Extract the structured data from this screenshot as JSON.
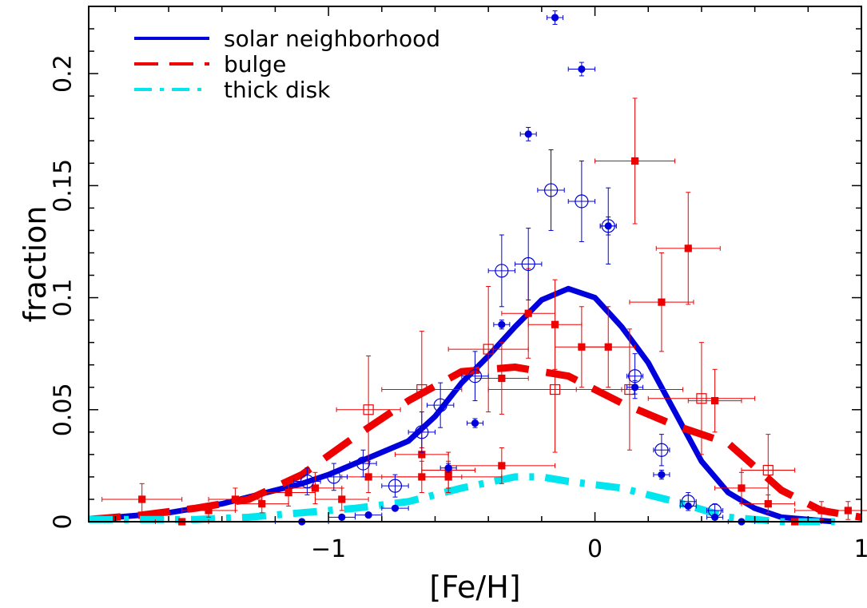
{
  "chart_data": {
    "type": "line",
    "xlabel": "[Fe/H]",
    "ylabel": "fraction",
    "xlim": [
      -1.9,
      1.0
    ],
    "ylim": [
      0,
      0.23
    ],
    "x_ticks": [
      -1,
      0,
      1
    ],
    "x_tick_labels": [
      "−1",
      "0",
      "1"
    ],
    "y_ticks": [
      0,
      0.05,
      0.1,
      0.15,
      0.2
    ],
    "y_tick_labels": [
      "0",
      "0.05",
      "0.1",
      "0.15",
      "0.2"
    ],
    "legend_position": "top-left",
    "colors": {
      "solar": "#0000dd",
      "bulge": "#ee0000",
      "thick": "#00e5ee"
    },
    "series": [
      {
        "name": "solar neighborhood",
        "key": "solar",
        "style": "solid",
        "points": [
          [
            -1.9,
            0.001
          ],
          [
            -1.8,
            0.002
          ],
          [
            -1.7,
            0.003
          ],
          [
            -1.6,
            0.004
          ],
          [
            -1.5,
            0.006
          ],
          [
            -1.4,
            0.008
          ],
          [
            -1.3,
            0.011
          ],
          [
            -1.2,
            0.014
          ],
          [
            -1.1,
            0.017
          ],
          [
            -1.0,
            0.021
          ],
          [
            -0.9,
            0.026
          ],
          [
            -0.8,
            0.031
          ],
          [
            -0.7,
            0.036
          ],
          [
            -0.6,
            0.047
          ],
          [
            -0.5,
            0.062
          ],
          [
            -0.4,
            0.074
          ],
          [
            -0.3,
            0.087
          ],
          [
            -0.2,
            0.099
          ],
          [
            -0.1,
            0.104
          ],
          [
            0.0,
            0.1
          ],
          [
            0.1,
            0.087
          ],
          [
            0.2,
            0.071
          ],
          [
            0.3,
            0.049
          ],
          [
            0.4,
            0.027
          ],
          [
            0.5,
            0.013
          ],
          [
            0.6,
            0.006
          ],
          [
            0.7,
            0.002
          ],
          [
            0.8,
            0.001
          ],
          [
            0.9,
            0.0
          ]
        ]
      },
      {
        "name": "bulge",
        "key": "bulge",
        "style": "dashed",
        "points": [
          [
            -1.9,
            0.001
          ],
          [
            -1.7,
            0.003
          ],
          [
            -1.5,
            0.006
          ],
          [
            -1.3,
            0.01
          ],
          [
            -1.1,
            0.021
          ],
          [
            -0.9,
            0.038
          ],
          [
            -0.7,
            0.054
          ],
          [
            -0.5,
            0.067
          ],
          [
            -0.3,
            0.069
          ],
          [
            -0.1,
            0.065
          ],
          [
            0.1,
            0.053
          ],
          [
            0.3,
            0.043
          ],
          [
            0.5,
            0.035
          ],
          [
            0.7,
            0.014
          ],
          [
            0.85,
            0.005
          ],
          [
            1.0,
            0.002
          ]
        ]
      },
      {
        "name": "thick disk",
        "key": "thick",
        "style": "dashdot",
        "points": [
          [
            -1.9,
            0.001
          ],
          [
            -1.7,
            0.001
          ],
          [
            -1.5,
            0.001
          ],
          [
            -1.3,
            0.002
          ],
          [
            -1.1,
            0.004
          ],
          [
            -0.9,
            0.006
          ],
          [
            -0.7,
            0.009
          ],
          [
            -0.5,
            0.015
          ],
          [
            -0.3,
            0.02
          ],
          [
            -0.2,
            0.02
          ],
          [
            -0.1,
            0.018
          ],
          [
            0.1,
            0.015
          ],
          [
            0.3,
            0.009
          ],
          [
            0.5,
            0.002
          ],
          [
            0.7,
            0.0
          ],
          [
            0.9,
            0.0
          ]
        ]
      }
    ],
    "points_blue_filled": [
      {
        "x": -0.15,
        "y": 0.225,
        "xerr": 0.03,
        "yerr": 0.003
      },
      {
        "x": -0.05,
        "y": 0.202,
        "xerr": 0.05,
        "yerr": 0.003
      },
      {
        "x": -0.25,
        "y": 0.173,
        "xerr": 0.03,
        "yerr": 0.003
      },
      {
        "x": 0.05,
        "y": 0.132,
        "xerr": 0.03,
        "yerr": 0.004
      },
      {
        "x": -0.35,
        "y": 0.088,
        "xerr": 0.03,
        "yerr": 0.002
      },
      {
        "x": 0.15,
        "y": 0.06,
        "xerr": 0.03,
        "yerr": 0.003
      },
      {
        "x": -0.45,
        "y": 0.044,
        "xerr": 0.03,
        "yerr": 0.002
      },
      {
        "x": -0.55,
        "y": 0.024,
        "xerr": 0.03,
        "yerr": 0.002
      },
      {
        "x": 0.25,
        "y": 0.021,
        "xerr": 0.03,
        "yerr": 0.002
      },
      {
        "x": -0.75,
        "y": 0.006,
        "xerr": 0.05,
        "yerr": 0.001
      },
      {
        "x": 0.35,
        "y": 0.007,
        "xerr": 0.03,
        "yerr": 0.001
      },
      {
        "x": -0.85,
        "y": 0.003,
        "xerr": 0.05,
        "yerr": 0.001
      },
      {
        "x": -0.95,
        "y": 0.002,
        "xerr": 0.05,
        "yerr": 0.001
      },
      {
        "x": 0.45,
        "y": 0.002,
        "xerr": 0.03,
        "yerr": 0.001
      },
      {
        "x": -1.1,
        "y": 0.0,
        "xerr": 0.1,
        "yerr": 0.0
      },
      {
        "x": 0.55,
        "y": 0.0,
        "xerr": 0.05,
        "yerr": 0.0
      }
    ],
    "points_blue_open": [
      {
        "x": -0.165,
        "y": 0.148,
        "xerr": 0.05,
        "yerr": 0.018
      },
      {
        "x": -0.05,
        "y": 0.143,
        "xerr": 0.05,
        "yerr": 0.018
      },
      {
        "x": 0.05,
        "y": 0.132,
        "xerr": 0.03,
        "yerr": 0.017
      },
      {
        "x": -0.25,
        "y": 0.115,
        "xerr": 0.05,
        "yerr": 0.016
      },
      {
        "x": -0.35,
        "y": 0.112,
        "xerr": 0.05,
        "yerr": 0.016
      },
      {
        "x": 0.15,
        "y": 0.065,
        "xerr": 0.03,
        "yerr": 0.01
      },
      {
        "x": -0.45,
        "y": 0.065,
        "xerr": 0.05,
        "yerr": 0.011
      },
      {
        "x": -0.58,
        "y": 0.052,
        "xerr": 0.05,
        "yerr": 0.01
      },
      {
        "x": -0.65,
        "y": 0.04,
        "xerr": 0.05,
        "yerr": 0.009
      },
      {
        "x": 0.25,
        "y": 0.032,
        "xerr": 0.03,
        "yerr": 0.007
      },
      {
        "x": -0.87,
        "y": 0.026,
        "xerr": 0.05,
        "yerr": 0.006
      },
      {
        "x": -0.98,
        "y": 0.02,
        "xerr": 0.05,
        "yerr": 0.006
      },
      {
        "x": -1.08,
        "y": 0.018,
        "xerr": 0.05,
        "yerr": 0.006
      },
      {
        "x": -0.75,
        "y": 0.016,
        "xerr": 0.05,
        "yerr": 0.005
      },
      {
        "x": 0.35,
        "y": 0.009,
        "xerr": 0.03,
        "yerr": 0.004
      },
      {
        "x": 0.45,
        "y": 0.005,
        "xerr": 0.03,
        "yerr": 0.003
      }
    ],
    "points_red_filled": [
      {
        "x": 0.15,
        "y": 0.161,
        "xerr": 0.15,
        "yerr": 0.028
      },
      {
        "x": 0.35,
        "y": 0.122,
        "xerr": 0.12,
        "yerr": 0.025
      },
      {
        "x": 0.25,
        "y": 0.098,
        "xerr": 0.12,
        "yerr": 0.022
      },
      {
        "x": -0.15,
        "y": 0.088,
        "xerr": 0.1,
        "yerr": 0.02
      },
      {
        "x": -0.25,
        "y": 0.093,
        "xerr": 0.1,
        "yerr": 0.02
      },
      {
        "x": -0.05,
        "y": 0.078,
        "xerr": 0.1,
        "yerr": 0.018
      },
      {
        "x": 0.05,
        "y": 0.078,
        "xerr": 0.1,
        "yerr": 0.018
      },
      {
        "x": -0.35,
        "y": 0.064,
        "xerr": 0.1,
        "yerr": 0.016
      },
      {
        "x": 0.45,
        "y": 0.054,
        "xerr": 0.1,
        "yerr": 0.014
      },
      {
        "x": -0.65,
        "y": 0.03,
        "xerr": 0.1,
        "yerr": 0.01
      },
      {
        "x": -0.35,
        "y": 0.025,
        "xerr": 0.2,
        "yerr": 0.008
      },
      {
        "x": -0.55,
        "y": 0.023,
        "xerr": 0.1,
        "yerr": 0.008
      },
      {
        "x": -0.85,
        "y": 0.02,
        "xerr": 0.1,
        "yerr": 0.007
      },
      {
        "x": -0.55,
        "y": 0.02,
        "xerr": 0.2,
        "yerr": 0.007
      },
      {
        "x": -0.65,
        "y": 0.02,
        "xerr": 0.15,
        "yerr": 0.007
      },
      {
        "x": -1.05,
        "y": 0.015,
        "xerr": 0.1,
        "yerr": 0.007
      },
      {
        "x": -1.15,
        "y": 0.013,
        "xerr": 0.1,
        "yerr": 0.006
      },
      {
        "x": 0.55,
        "y": 0.015,
        "xerr": 0.1,
        "yerr": 0.007
      },
      {
        "x": -0.95,
        "y": 0.01,
        "xerr": 0.1,
        "yerr": 0.005
      },
      {
        "x": -1.35,
        "y": 0.01,
        "xerr": 0.1,
        "yerr": 0.005
      },
      {
        "x": -1.25,
        "y": 0.008,
        "xerr": 0.1,
        "yerr": 0.004
      },
      {
        "x": 0.65,
        "y": 0.008,
        "xerr": 0.1,
        "yerr": 0.004
      },
      {
        "x": -1.7,
        "y": 0.01,
        "xerr": 0.15,
        "yerr": 0.007
      },
      {
        "x": -1.45,
        "y": 0.005,
        "xerr": 0.1,
        "yerr": 0.003
      },
      {
        "x": 0.85,
        "y": 0.005,
        "xerr": 0.1,
        "yerr": 0.004
      },
      {
        "x": -1.55,
        "y": 0.0,
        "xerr": 0.1,
        "yerr": 0.0
      },
      {
        "x": 0.75,
        "y": 0.0,
        "xerr": 0.1,
        "yerr": 0.0
      },
      {
        "x": 0.95,
        "y": 0.005,
        "xerr": 0.1,
        "yerr": 0.004
      }
    ],
    "points_red_open": [
      {
        "x": -0.85,
        "y": 0.05,
        "xerr": 0.12,
        "yerr": 0.024
      },
      {
        "x": -0.65,
        "y": 0.059,
        "xerr": 0.15,
        "yerr": 0.026
      },
      {
        "x": -0.4,
        "y": 0.077,
        "xerr": 0.15,
        "yerr": 0.028
      },
      {
        "x": -0.15,
        "y": 0.059,
        "xerr": 0.25,
        "yerr": 0.028
      },
      {
        "x": 0.13,
        "y": 0.059,
        "xerr": 0.2,
        "yerr": 0.027
      },
      {
        "x": 0.4,
        "y": 0.055,
        "xerr": 0.2,
        "yerr": 0.025
      },
      {
        "x": 0.65,
        "y": 0.023,
        "xerr": 0.1,
        "yerr": 0.016
      }
    ]
  }
}
